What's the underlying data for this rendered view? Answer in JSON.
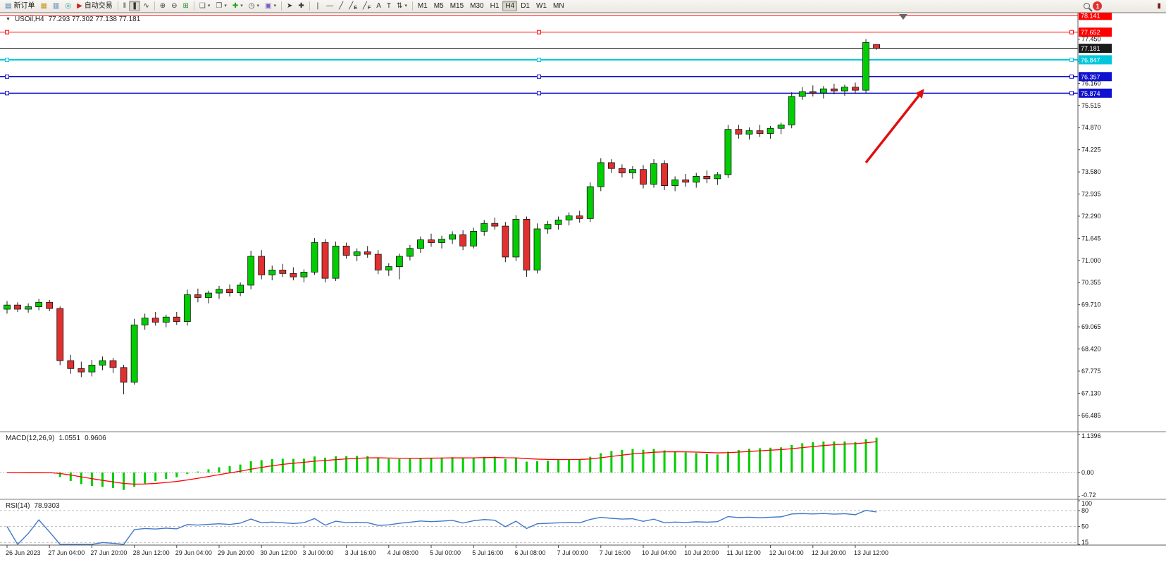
{
  "toolbar": {
    "new_order_label": "新订单",
    "auto_trading_label": "自动交易",
    "timeframes": [
      "M1",
      "M5",
      "M15",
      "M30",
      "H1",
      "H4",
      "D1",
      "W1",
      "MN"
    ],
    "active_timeframe": "H4",
    "notification_count": "1",
    "items": [
      {
        "t": "btn",
        "name": "new-order-button",
        "glyph": "▤",
        "color": "#4a78b5",
        "labelKey": "new_order_label"
      },
      {
        "t": "btn",
        "name": "market-watch-icon",
        "glyph": "▦",
        "color": "#c59b22"
      },
      {
        "t": "btn",
        "name": "data-window-icon",
        "glyph": "▥",
        "color": "#4a78b5"
      },
      {
        "t": "btn",
        "name": "navigator-icon",
        "glyph": "◎",
        "color": "#2e9e9e"
      },
      {
        "t": "btn",
        "name": "auto-trading-button",
        "glyph": "▶",
        "color": "#cc2222",
        "labelKey": "auto_trading_label"
      },
      {
        "t": "sep"
      },
      {
        "t": "btn",
        "name": "bar-chart-icon",
        "glyph": "‖",
        "color": "#333"
      },
      {
        "t": "btn",
        "name": "candlestick-chart-icon",
        "glyph": "❚",
        "color": "#333",
        "active": true
      },
      {
        "t": "btn",
        "name": "line-chart-icon",
        "glyph": "∿",
        "color": "#333"
      },
      {
        "t": "sep"
      },
      {
        "t": "btn",
        "name": "zoom-in-icon",
        "glyph": "⊕",
        "color": "#333"
      },
      {
        "t": "btn",
        "name": "zoom-out-icon",
        "glyph": "⊖",
        "color": "#333"
      },
      {
        "t": "btn",
        "name": "new-chart-icon",
        "glyph": "⊞",
        "color": "#2c8c2c"
      },
      {
        "t": "sep"
      },
      {
        "t": "btn",
        "name": "windows-icon",
        "glyph": "❏",
        "color": "#555",
        "caret": true
      },
      {
        "t": "btn",
        "name": "profiles-icon",
        "glyph": "❐",
        "color": "#555",
        "caret": true
      },
      {
        "t": "btn",
        "name": "indicators-icon",
        "glyph": "✚",
        "color": "#1fa01f",
        "caret": true
      },
      {
        "t": "btn",
        "name": "periods-icon",
        "glyph": "◷",
        "color": "#444",
        "caret": true
      },
      {
        "t": "btn",
        "name": "templates-icon",
        "glyph": "▣",
        "color": "#7a5fc0",
        "caret": true
      },
      {
        "t": "sep"
      },
      {
        "t": "btn",
        "name": "cursor-icon",
        "glyph": "➤",
        "color": "#333"
      },
      {
        "t": "btn",
        "name": "crosshair-icon",
        "glyph": "✚",
        "color": "#333"
      },
      {
        "t": "sep"
      },
      {
        "t": "btn",
        "name": "vertical-line-icon",
        "glyph": "❘",
        "color": "#333"
      },
      {
        "t": "btn",
        "name": "horizontal-line-icon",
        "glyph": "―",
        "color": "#333"
      },
      {
        "t": "btn",
        "name": "trendline-icon",
        "glyph": "╱",
        "color": "#333"
      },
      {
        "t": "btn",
        "name": "equidistant-channel-icon",
        "glyph": "╱",
        "color": "#333",
        "badge": "E"
      },
      {
        "t": "btn",
        "name": "fibonacci-icon",
        "glyph": "╱",
        "color": "#333",
        "badge": "F"
      },
      {
        "t": "btn",
        "name": "text-icon",
        "glyph": "A",
        "color": "#333"
      },
      {
        "t": "btn",
        "name": "text-label-icon",
        "glyph": "T",
        "color": "#333"
      },
      {
        "t": "btn",
        "name": "arrows-icon",
        "glyph": "⇅",
        "color": "#333",
        "caret": true
      },
      {
        "t": "sep"
      },
      {
        "t": "timeframes"
      },
      {
        "t": "spacer"
      },
      {
        "t": "search"
      },
      {
        "t": "notification"
      },
      {
        "t": "gap"
      },
      {
        "t": "btn",
        "name": "alert-icon",
        "glyph": "▮",
        "color": "#7a1d1d"
      }
    ]
  },
  "chart": {
    "collapse_arrow": "▼",
    "title_symbol": "USOil,H4",
    "title_ohlc": "77.293 77.302 77.138 77.181",
    "bull_color": "#00CE00",
    "bear_color": "#E03030",
    "axis_labels": [
      77.45,
      76.805,
      76.16,
      75.515,
      74.87,
      74.225,
      73.58,
      72.935,
      72.29,
      71.645,
      71.0,
      70.355,
      69.71,
      69.065,
      68.42,
      67.775,
      67.13,
      66.485
    ],
    "price_lines": [
      {
        "price": 78.141,
        "label": "78.141",
        "color": "#FF0000",
        "width": 1,
        "handles": false
      },
      {
        "price": 77.652,
        "label": "77.652",
        "color": "#FF0000",
        "width": 1,
        "handles": true
      },
      {
        "price": 77.181,
        "label": "77.181",
        "color": "#1a1a1a",
        "width": 1,
        "handles": false
      },
      {
        "price": 76.847,
        "label": "76.847",
        "color": "#00C8DC",
        "width": 2,
        "handles": true
      },
      {
        "price": 76.357,
        "label": "76.357",
        "color": "#1010D0",
        "width": 1.5,
        "handles": true
      },
      {
        "price": 75.874,
        "label": "75.874",
        "color": "#1010D0",
        "width": 1.5,
        "handles": true
      }
    ],
    "arrow": {
      "from_bar": 81,
      "from_price": 73.85,
      "to_bar": 86.5,
      "to_price": 76.0,
      "color": "#E01010"
    }
  },
  "chart_data": {
    "type": "candlestick",
    "symbol": "USOil",
    "period": "H4",
    "y_axis_range": [
      66.03,
      78.22
    ],
    "x_label_step_bars": 4,
    "x_labels": [
      "26 Jun 2023",
      "27 Jun 04:00",
      "27 Jun 20:00",
      "28 Jun 12:00",
      "29 Jun 04:00",
      "29 Jun 20:00",
      "30 Jun 12:00",
      "3 Jul 00:00",
      "3 Jul 16:00",
      "4 Jul 08:00",
      "5 Jul 00:00",
      "5 Jul 16:00",
      "6 Jul 08:00",
      "7 Jul 00:00",
      "7 Jul 16:00",
      "10 Jul 04:00",
      "10 Jul 20:00",
      "11 Jul 12:00",
      "12 Jul 04:00",
      "12 Jul 20:00",
      "13 Jul 12:00"
    ],
    "candles": [
      [
        69.58,
        69.82,
        69.45,
        69.7
      ],
      [
        69.7,
        69.78,
        69.5,
        69.58
      ],
      [
        69.58,
        69.75,
        69.48,
        69.65
      ],
      [
        69.65,
        69.88,
        69.55,
        69.78
      ],
      [
        69.78,
        69.85,
        69.52,
        69.6
      ],
      [
        69.6,
        69.66,
        67.95,
        68.08
      ],
      [
        68.08,
        68.25,
        67.7,
        67.85
      ],
      [
        67.85,
        68.05,
        67.6,
        67.75
      ],
      [
        67.75,
        68.1,
        67.62,
        67.95
      ],
      [
        67.95,
        68.2,
        67.8,
        68.08
      ],
      [
        68.08,
        68.16,
        67.72,
        67.88
      ],
      [
        67.88,
        67.96,
        67.1,
        67.45
      ],
      [
        67.45,
        69.3,
        67.38,
        69.12
      ],
      [
        69.12,
        69.45,
        68.98,
        69.32
      ],
      [
        69.32,
        69.5,
        69.1,
        69.2
      ],
      [
        69.2,
        69.42,
        69.05,
        69.35
      ],
      [
        69.35,
        69.5,
        69.12,
        69.22
      ],
      [
        69.22,
        70.15,
        69.1,
        70.0
      ],
      [
        70.0,
        70.18,
        69.78,
        69.92
      ],
      [
        69.92,
        70.12,
        69.75,
        70.05
      ],
      [
        70.05,
        70.26,
        69.88,
        70.16
      ],
      [
        70.16,
        70.3,
        69.95,
        70.06
      ],
      [
        70.06,
        70.36,
        69.96,
        70.28
      ],
      [
        70.28,
        71.28,
        70.16,
        71.12
      ],
      [
        71.12,
        71.3,
        70.45,
        70.58
      ],
      [
        70.58,
        70.85,
        70.42,
        70.72
      ],
      [
        70.72,
        70.9,
        70.52,
        70.62
      ],
      [
        70.62,
        70.8,
        70.42,
        70.52
      ],
      [
        70.52,
        70.74,
        70.36,
        70.66
      ],
      [
        70.66,
        71.65,
        70.58,
        71.52
      ],
      [
        71.52,
        71.62,
        70.36,
        70.48
      ],
      [
        70.48,
        71.55,
        70.4,
        71.42
      ],
      [
        71.42,
        71.52,
        71.05,
        71.15
      ],
      [
        71.15,
        71.35,
        70.98,
        71.25
      ],
      [
        71.25,
        71.42,
        71.08,
        71.18
      ],
      [
        71.18,
        71.3,
        70.6,
        70.72
      ],
      [
        70.72,
        70.92,
        70.55,
        70.82
      ],
      [
        70.82,
        71.2,
        70.45,
        71.12
      ],
      [
        71.12,
        71.45,
        71.0,
        71.35
      ],
      [
        71.35,
        71.7,
        71.22,
        71.6
      ],
      [
        71.6,
        71.78,
        71.4,
        71.52
      ],
      [
        71.52,
        71.72,
        71.35,
        71.62
      ],
      [
        71.62,
        71.85,
        71.48,
        71.75
      ],
      [
        71.75,
        71.88,
        71.3,
        71.42
      ],
      [
        71.42,
        71.95,
        71.35,
        71.85
      ],
      [
        71.85,
        72.18,
        71.72,
        72.08
      ],
      [
        72.08,
        72.25,
        71.9,
        72.0
      ],
      [
        72.0,
        72.12,
        70.95,
        71.1
      ],
      [
        71.1,
        72.32,
        70.98,
        72.2
      ],
      [
        72.2,
        72.28,
        70.52,
        70.72
      ],
      [
        70.72,
        72.08,
        70.62,
        71.92
      ],
      [
        71.92,
        72.15,
        71.78,
        72.05
      ],
      [
        72.05,
        72.28,
        71.9,
        72.18
      ],
      [
        72.18,
        72.4,
        72.02,
        72.3
      ],
      [
        72.3,
        72.45,
        72.1,
        72.22
      ],
      [
        72.22,
        73.28,
        72.12,
        73.15
      ],
      [
        73.15,
        73.98,
        73.02,
        73.85
      ],
      [
        73.85,
        73.95,
        73.55,
        73.68
      ],
      [
        73.68,
        73.8,
        73.42,
        73.55
      ],
      [
        73.55,
        73.75,
        73.38,
        73.65
      ],
      [
        73.65,
        73.78,
        73.1,
        73.22
      ],
      [
        73.22,
        73.95,
        73.12,
        73.82
      ],
      [
        73.82,
        73.92,
        73.05,
        73.18
      ],
      [
        73.18,
        73.45,
        73.02,
        73.35
      ],
      [
        73.35,
        73.52,
        73.15,
        73.28
      ],
      [
        73.28,
        73.55,
        73.12,
        73.45
      ],
      [
        73.45,
        73.62,
        73.25,
        73.38
      ],
      [
        73.38,
        73.58,
        73.2,
        73.5
      ],
      [
        73.5,
        74.95,
        73.4,
        74.82
      ],
      [
        74.82,
        74.95,
        74.55,
        74.68
      ],
      [
        74.68,
        74.88,
        74.52,
        74.78
      ],
      [
        74.78,
        74.95,
        74.6,
        74.7
      ],
      [
        74.7,
        74.92,
        74.55,
        74.85
      ],
      [
        74.85,
        75.02,
        74.68,
        74.95
      ],
      [
        74.95,
        75.9,
        74.85,
        75.78
      ],
      [
        75.78,
        76.05,
        75.68,
        75.92
      ],
      [
        75.92,
        76.1,
        75.78,
        75.88
      ],
      [
        75.88,
        76.08,
        75.72,
        76.0
      ],
      [
        76.0,
        76.15,
        75.84,
        75.94
      ],
      [
        75.94,
        76.12,
        75.8,
        76.05
      ],
      [
        76.05,
        76.18,
        75.86,
        75.96
      ],
      [
        75.96,
        77.45,
        75.88,
        77.35
      ],
      [
        77.293,
        77.302,
        77.138,
        77.181
      ]
    ],
    "indicators": [
      {
        "name": "MACD",
        "label": "MACD(12,26,9)",
        "value_main": "1.0551",
        "value_signal": "0.9606",
        "params": [
          12,
          26,
          9
        ],
        "histogram_color": "#00CE00",
        "signal_color": "#FF0000",
        "range": [
          -0.78,
          1.1966
        ],
        "scale_labels": [
          {
            "text": "1.1396",
            "value": 1.1396
          },
          {
            "text": "0.00",
            "value": 0
          },
          {
            "text": "-0.72",
            "value": -0.72
          }
        ]
      },
      {
        "name": "RSI",
        "label": "RSI(14)",
        "value": "78.9303",
        "params": [
          14
        ],
        "line_color": "#4077C8",
        "levels": [
          80,
          50,
          20
        ],
        "range": [
          15,
          100
        ],
        "scale_labels": [
          {
            "text": "100",
            "value": 100
          },
          {
            "text": "80",
            "value": 80
          },
          {
            "text": "50",
            "value": 50
          },
          {
            "text": "15",
            "value": 15
          }
        ]
      }
    ]
  }
}
